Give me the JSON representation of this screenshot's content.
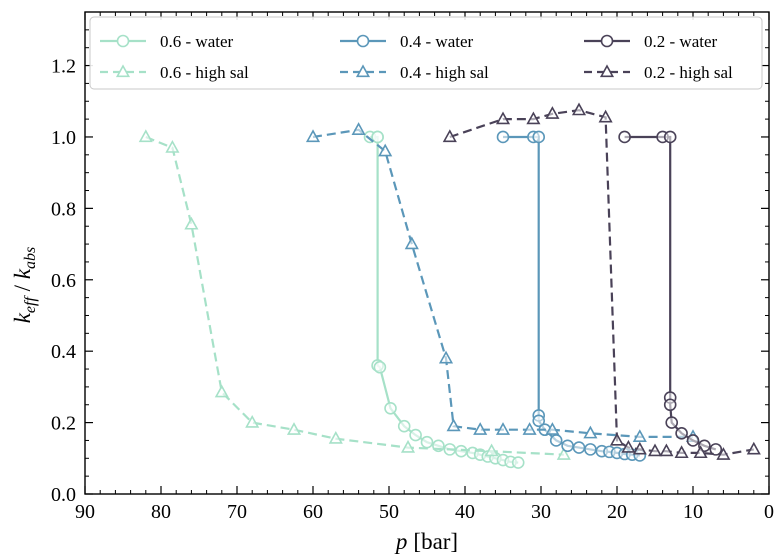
{
  "chart_data": {
    "type": "line",
    "xlabel_var": "p",
    "xlabel_unit": "[bar]",
    "ylabel_k": "k",
    "ylabel_sub1": "eff",
    "ylabel_sep": " / ",
    "ylabel_sub2": "abs",
    "xlim": [
      90,
      0
    ],
    "ylim": [
      0.0,
      1.35
    ],
    "x_reversed": true,
    "grid": false,
    "legend_placement": "top",
    "x_ticks": [
      90,
      80,
      70,
      60,
      50,
      40,
      30,
      20,
      10,
      0
    ],
    "y_ticks": [
      0.0,
      0.2,
      0.4,
      0.6,
      0.8,
      1.0,
      1.2
    ],
    "y_tick_labels": [
      "0.0",
      "0.2",
      "0.4",
      "0.6",
      "0.8",
      "1.0",
      "1.2"
    ],
    "series": [
      {
        "name": "0.6 - water",
        "color": "#a6e1c8",
        "marker": "circle",
        "dashed": false,
        "x": [
          52.5,
          51.5,
          51.5,
          51.5,
          51.2,
          49.8,
          48,
          46.5,
          45,
          43.5,
          42,
          40.5,
          39,
          38,
          37,
          36,
          35,
          34,
          33
        ],
        "y": [
          1.0,
          1.0,
          1.0,
          0.36,
          0.355,
          0.24,
          0.19,
          0.165,
          0.145,
          0.135,
          0.125,
          0.12,
          0.115,
          0.11,
          0.105,
          0.1,
          0.095,
          0.09,
          0.088
        ]
      },
      {
        "name": "0.6 - high sal",
        "color": "#a6e1c8",
        "marker": "triangle",
        "dashed": true,
        "x": [
          82,
          78.5,
          76,
          72,
          68,
          62.5,
          57,
          47.5,
          36.5,
          27
        ],
        "y": [
          1.0,
          0.97,
          0.755,
          0.285,
          0.2,
          0.18,
          0.155,
          0.13,
          0.12,
          0.11
        ]
      },
      {
        "name": "0.4 - water",
        "color": "#5b97b9",
        "marker": "circle",
        "dashed": false,
        "x": [
          35,
          31,
          30.3,
          30.3,
          30.3,
          29.5,
          28,
          26.5,
          25,
          23.5,
          22,
          21,
          20,
          19,
          18,
          17
        ],
        "y": [
          1.0,
          1.0,
          1.0,
          0.22,
          0.205,
          0.18,
          0.15,
          0.135,
          0.13,
          0.125,
          0.12,
          0.118,
          0.115,
          0.112,
          0.11,
          0.108
        ]
      },
      {
        "name": "0.4 - high sal",
        "color": "#5b97b9",
        "marker": "triangle",
        "dashed": true,
        "x": [
          60,
          54,
          50.5,
          47,
          42.5,
          41.5,
          38,
          35,
          31.5,
          28.5,
          23.5,
          17,
          10
        ],
        "y": [
          1.0,
          1.02,
          0.96,
          0.7,
          0.38,
          0.19,
          0.18,
          0.18,
          0.18,
          0.18,
          0.17,
          0.16,
          0.16
        ]
      },
      {
        "name": "0.2 - water",
        "color": "#4a4258",
        "marker": "circle",
        "dashed": false,
        "x": [
          19,
          14,
          13,
          13,
          13,
          12.8,
          11.5,
          10,
          8.5,
          7
        ],
        "y": [
          1.0,
          1.0,
          1.0,
          0.27,
          0.25,
          0.2,
          0.17,
          0.15,
          0.135,
          0.125
        ]
      },
      {
        "name": "0.2 - high sal",
        "color": "#4a4258",
        "marker": "triangle",
        "dashed": true,
        "x": [
          42,
          35,
          31,
          28.5,
          25,
          21.5,
          20,
          18.5,
          17,
          15,
          13.5,
          11.5,
          9,
          6,
          2
        ],
        "y": [
          1.0,
          1.05,
          1.05,
          1.065,
          1.075,
          1.055,
          0.15,
          0.13,
          0.125,
          0.12,
          0.12,
          0.115,
          0.115,
          0.11,
          0.125
        ]
      }
    ]
  }
}
